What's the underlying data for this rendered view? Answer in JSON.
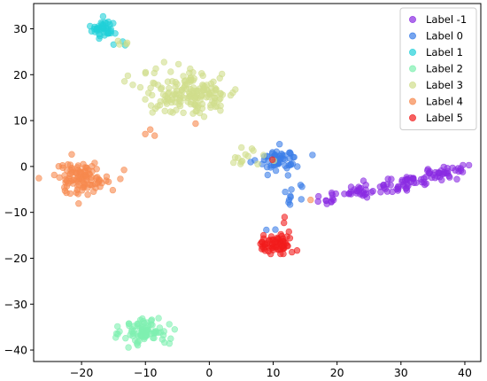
{
  "chart_data": {
    "type": "scatter",
    "title": "",
    "xlabel": "",
    "ylabel": "",
    "xlim": [
      -27.5,
      42.5
    ],
    "ylim": [
      -42.5,
      35.5
    ],
    "x_ticks": [
      -20,
      -10,
      0,
      10,
      20,
      30,
      40
    ],
    "y_ticks": [
      -40,
      -30,
      -20,
      -10,
      0,
      10,
      20,
      30
    ],
    "grid": false,
    "legend_position": "top-right",
    "series": [
      {
        "name": "Label -1",
        "color": "#8a2be2",
        "clusters": [
          {
            "cx": 18,
            "cy": -7,
            "sx": 1.2,
            "sy": 0.6,
            "n": 10
          },
          {
            "cx": 23,
            "cy": -5.5,
            "sx": 1.8,
            "sy": 0.7,
            "n": 25
          },
          {
            "cx": 28,
            "cy": -4.5,
            "sx": 1.6,
            "sy": 0.7,
            "n": 25
          },
          {
            "cx": 32,
            "cy": -3.0,
            "sx": 1.5,
            "sy": 0.7,
            "n": 25
          },
          {
            "cx": 36,
            "cy": -1.5,
            "sx": 1.5,
            "sy": 0.7,
            "n": 25
          },
          {
            "cx": 39,
            "cy": -0.5,
            "sx": 0.8,
            "sy": 0.5,
            "n": 10
          }
        ]
      },
      {
        "name": "Label 0",
        "color": "#3b7de8",
        "clusters": [
          {
            "cx": 11,
            "cy": 1.5,
            "sx": 1.6,
            "sy": 1.3,
            "n": 55
          },
          {
            "cx": 13,
            "cy": -6,
            "sx": 1.0,
            "sy": 1.5,
            "n": 10
          },
          {
            "cx": 9.5,
            "cy": -14,
            "sx": 0.5,
            "sy": 0.5,
            "n": 2
          }
        ]
      },
      {
        "name": "Label 1",
        "color": "#22d0d8",
        "clusters": [
          {
            "cx": -16.5,
            "cy": 30,
            "sx": 1.0,
            "sy": 1.0,
            "n": 45
          },
          {
            "cx": -13.5,
            "cy": 26.5,
            "sx": 0.6,
            "sy": 0.5,
            "n": 3
          }
        ]
      },
      {
        "name": "Label 2",
        "color": "#7ff0b0",
        "clusters": [
          {
            "cx": -10,
            "cy": -36,
            "sx": 1.8,
            "sy": 1.5,
            "n": 85
          }
        ]
      },
      {
        "name": "Label 3",
        "color": "#d0de8c",
        "clusters": [
          {
            "cx": -3,
            "cy": 16,
            "sx": 3.8,
            "sy": 2.4,
            "n": 175
          },
          {
            "cx": 6,
            "cy": 2.5,
            "sx": 1.4,
            "sy": 1.4,
            "n": 14
          },
          {
            "cx": -13.5,
            "cy": 27,
            "sx": 0.6,
            "sy": 0.6,
            "n": 4
          }
        ]
      },
      {
        "name": "Label 4",
        "color": "#f7894e",
        "clusters": [
          {
            "cx": -20,
            "cy": -2.5,
            "sx": 2.3,
            "sy": 1.7,
            "n": 105
          },
          {
            "cx": -9.5,
            "cy": 7.5,
            "sx": 0.6,
            "sy": 0.4,
            "n": 3
          },
          {
            "cx": -2,
            "cy": 9,
            "sx": 0.3,
            "sy": 0.3,
            "n": 1
          },
          {
            "cx": 15,
            "cy": -7,
            "sx": 0.4,
            "sy": 0.4,
            "n": 1
          }
        ]
      },
      {
        "name": "Label 5",
        "color": "#f21c1c",
        "clusters": [
          {
            "cx": 10.5,
            "cy": -17,
            "sx": 1.4,
            "sy": 1.1,
            "n": 65
          },
          {
            "cx": 12,
            "cy": -11,
            "sx": 0.4,
            "sy": 0.8,
            "n": 2
          },
          {
            "cx": 10,
            "cy": 1,
            "sx": 0.3,
            "sy": 0.3,
            "n": 1
          }
        ]
      }
    ]
  }
}
